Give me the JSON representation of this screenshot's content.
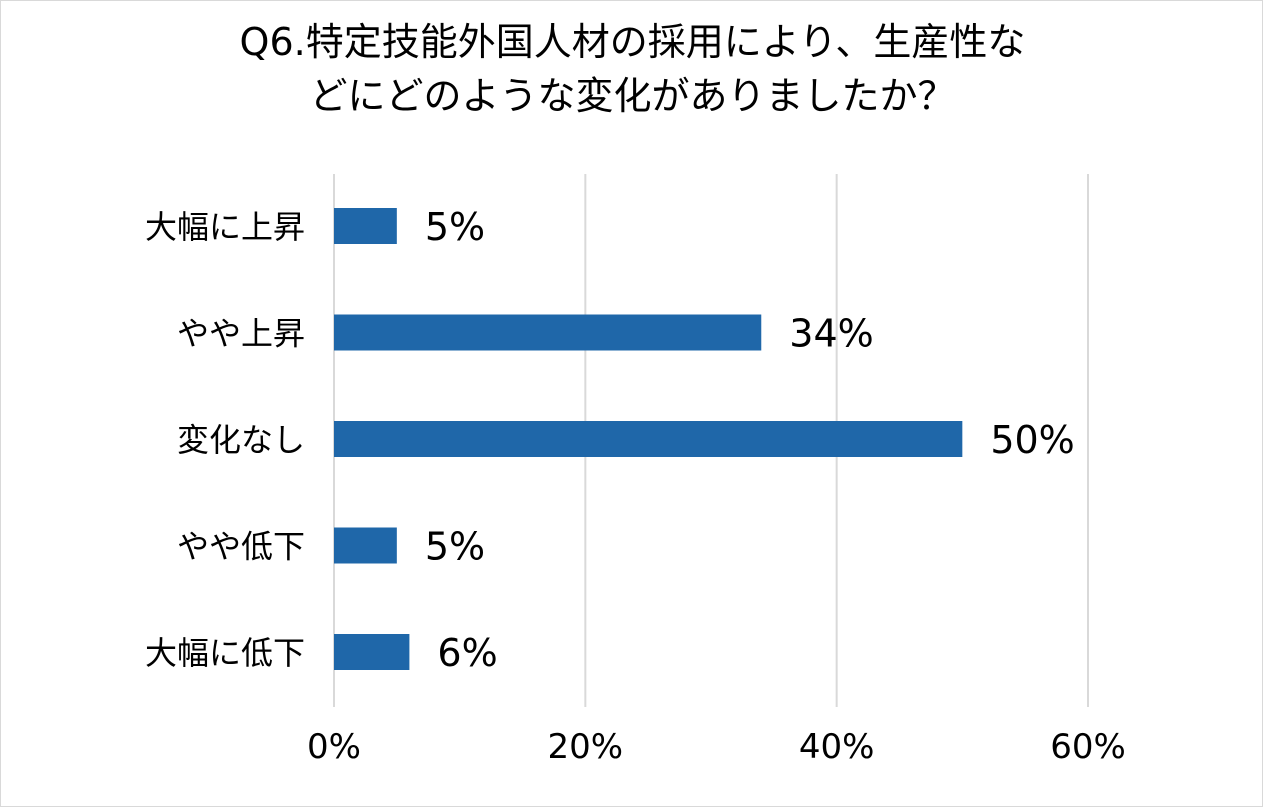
{
  "chart_data": {
    "type": "bar",
    "orientation": "horizontal",
    "title": [
      "Q6.特定技能外国人材の採用により、生産性な",
      "どにどのような変化がありましたか？"
    ],
    "categories": [
      "大幅に上昇",
      "やや上昇",
      "変化なし",
      "やや低下",
      "大幅に低下"
    ],
    "values": [
      5,
      34,
      50,
      5,
      6
    ],
    "data_labels": [
      "5%",
      "34%",
      "50%",
      "5%",
      "6%"
    ],
    "xlim": [
      0,
      60
    ],
    "x_ticks": [
      0,
      20,
      40,
      60
    ],
    "x_tick_labels": [
      "0%",
      "20%",
      "40%",
      "60%"
    ],
    "xlabel": "",
    "ylabel": "",
    "grid": "vertical",
    "legend": "none",
    "bar_color": "#1f67a9",
    "grid_color": "#d9d9d9"
  }
}
